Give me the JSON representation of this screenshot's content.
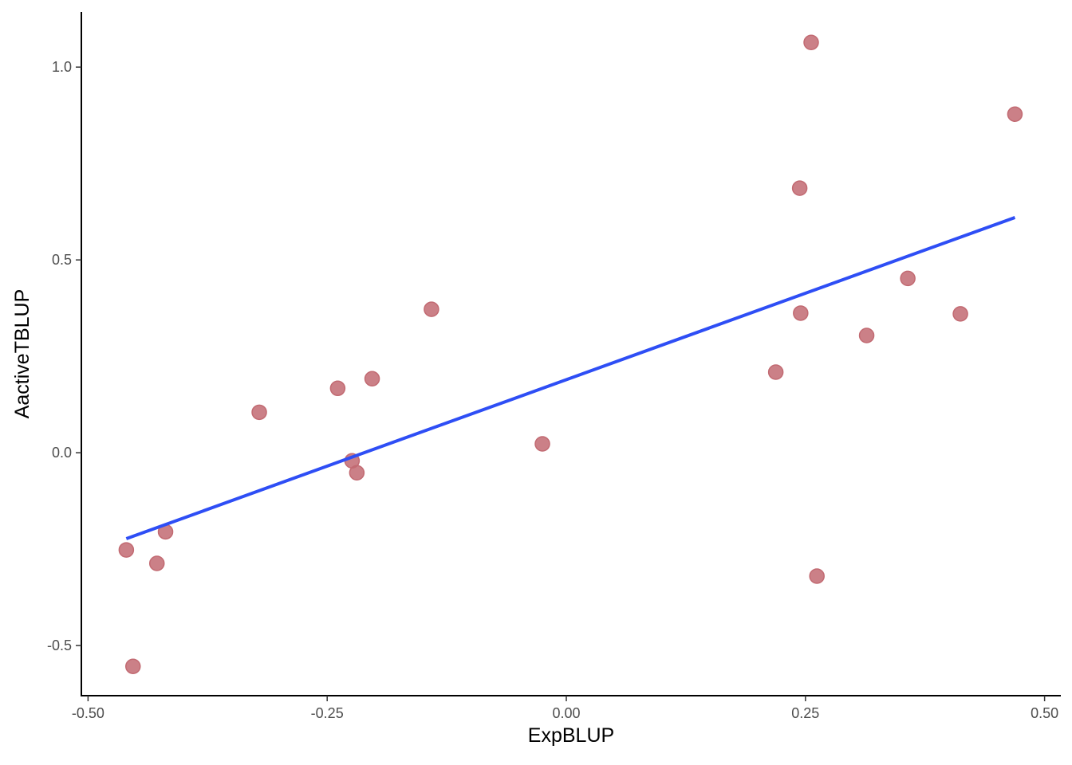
{
  "chart_data": {
    "type": "scatter",
    "x_label": "ExpBLUP",
    "y_label": "AactiveTBLUP",
    "xlim": [
      -0.507,
      0.517
    ],
    "ylim": [
      -0.63,
      1.143
    ],
    "xticks": [
      {
        "value": -0.5,
        "label": "-0.50"
      },
      {
        "value": -0.25,
        "label": "-0.25"
      },
      {
        "value": 0,
        "label": "0.00"
      },
      {
        "value": 0.25,
        "label": "0.25"
      },
      {
        "value": 0.5,
        "label": "0.50"
      }
    ],
    "yticks": [
      -0.5,
      {
        "value": 0,
        "label": "0.0"
      },
      0.5,
      {
        "value": 1,
        "label": "1.0"
      }
    ],
    "grid": false,
    "color": "#c26a72",
    "x": [
      0.256,
      0.469,
      0.244,
      0.357,
      0.245,
      0.412,
      0.314,
      0.219,
      0.262,
      -0.141,
      -0.203,
      -0.239,
      -0.321,
      -0.025,
      -0.224,
      -0.219,
      -0.419,
      -0.46,
      -0.428,
      -0.453
    ],
    "y": [
      1.064,
      0.878,
      0.686,
      0.452,
      0.362,
      0.36,
      0.304,
      0.209,
      -0.32,
      0.372,
      0.192,
      0.167,
      0.105,
      0.023,
      -0.021,
      -0.052,
      -0.205,
      -0.252,
      -0.287,
      -0.554
    ],
    "trendline": {
      "x": [
        -0.46,
        0.469
      ],
      "y": [
        -0.223,
        0.61
      ],
      "color": "#2e4ef5"
    }
  }
}
